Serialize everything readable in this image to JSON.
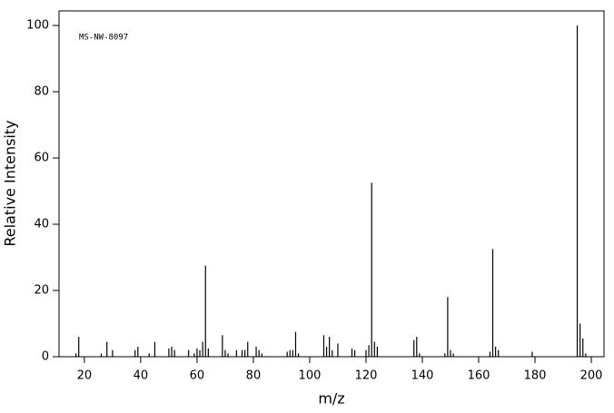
{
  "chart_data": {
    "type": "stem",
    "annotation": "MS-NW-8097",
    "xlabel": "m/z",
    "ylabel": "Relative Intensity",
    "color": "#000000",
    "x": [
      17,
      18,
      26,
      28,
      30,
      38,
      39,
      43,
      45,
      50,
      51,
      52,
      57,
      59,
      60,
      61,
      62,
      63,
      64,
      69,
      70,
      71,
      74,
      76,
      77,
      78,
      81,
      82,
      83,
      92,
      93,
      94,
      95,
      96,
      105,
      106,
      107,
      108,
      110,
      115,
      116,
      120,
      121,
      122,
      123,
      124,
      137,
      138,
      139,
      148,
      149,
      150,
      151,
      164,
      165,
      166,
      167,
      179,
      195,
      196,
      197,
      198
    ],
    "values": [
      1,
      6,
      1,
      4.5,
      2,
      2,
      3,
      1,
      4.5,
      2.5,
      3,
      2,
      2,
      1,
      2.5,
      2,
      4.5,
      27.5,
      2.5,
      6.5,
      2,
      1,
      2,
      2,
      2,
      4.5,
      3,
      2,
      1,
      1.5,
      2,
      2,
      7.5,
      1,
      6.5,
      3,
      6,
      2,
      4,
      2.5,
      2,
      2,
      3.5,
      52.5,
      4.5,
      3,
      5,
      6,
      1,
      1,
      18,
      2,
      1,
      1.5,
      32.5,
      3,
      2,
      1.5,
      100,
      10,
      5.5,
      1
    ],
    "xlim": [
      11,
      204.5
    ],
    "ylim": [
      0,
      104.4
    ],
    "xticks": [
      20,
      40,
      60,
      80,
      100,
      120,
      140,
      160,
      180,
      200
    ],
    "yticks": [
      0,
      20,
      40,
      60,
      80,
      100
    ]
  }
}
